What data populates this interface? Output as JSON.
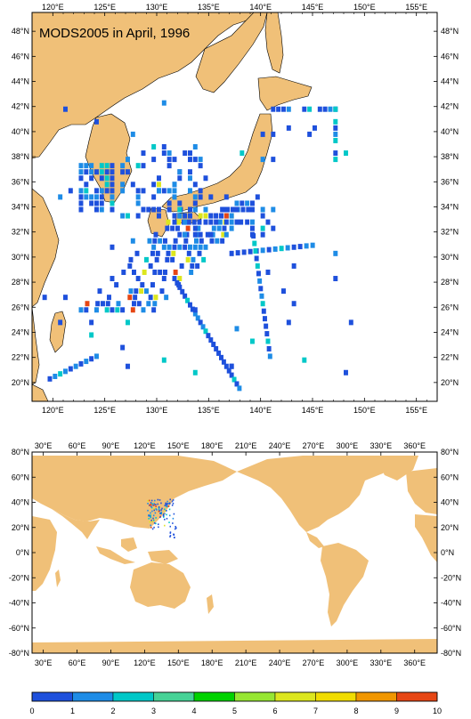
{
  "title": "MODS2005 in April, 1996",
  "colors": {
    "land": "#f0c078",
    "coast": "#000000",
    "scale": [
      "#1e50dc",
      "#1e8ce6",
      "#00c8c8",
      "#46d296",
      "#00d200",
      "#96e632",
      "#dce61e",
      "#f0dc00",
      "#f09600",
      "#e64614"
    ]
  },
  "regional_map": {
    "lon_ticks": [
      "120°E",
      "125°E",
      "130°E",
      "135°E",
      "140°E",
      "145°E",
      "150°E",
      "155°E"
    ],
    "lat_ticks": [
      "20°N",
      "22°N",
      "24°N",
      "26°N",
      "28°N",
      "30°N",
      "32°N",
      "34°N",
      "36°N",
      "38°N",
      "40°N",
      "42°N",
      "44°N",
      "46°N",
      "48°N"
    ]
  },
  "global_map": {
    "lon_ticks": [
      "30°E",
      "60°E",
      "90°E",
      "120°E",
      "150°E",
      "180°E",
      "210°E",
      "240°E",
      "270°E",
      "300°E",
      "330°E",
      "360°E"
    ],
    "lat_ticks": [
      "80°S",
      "60°S",
      "40°S",
      "20°S",
      "0°N",
      "20°N",
      "40°N",
      "60°N",
      "80°N"
    ],
    "lat_labels_shown": [
      "-80°N",
      "-60°N",
      "-40°N",
      "-20°N",
      "0°N",
      "20°N",
      "40°N",
      "60°N",
      "80°N"
    ]
  },
  "colorbar": {
    "labels": [
      "0",
      "1",
      "2",
      "3",
      "4",
      "5",
      "6",
      "7",
      "8",
      "9",
      "10"
    ]
  }
}
